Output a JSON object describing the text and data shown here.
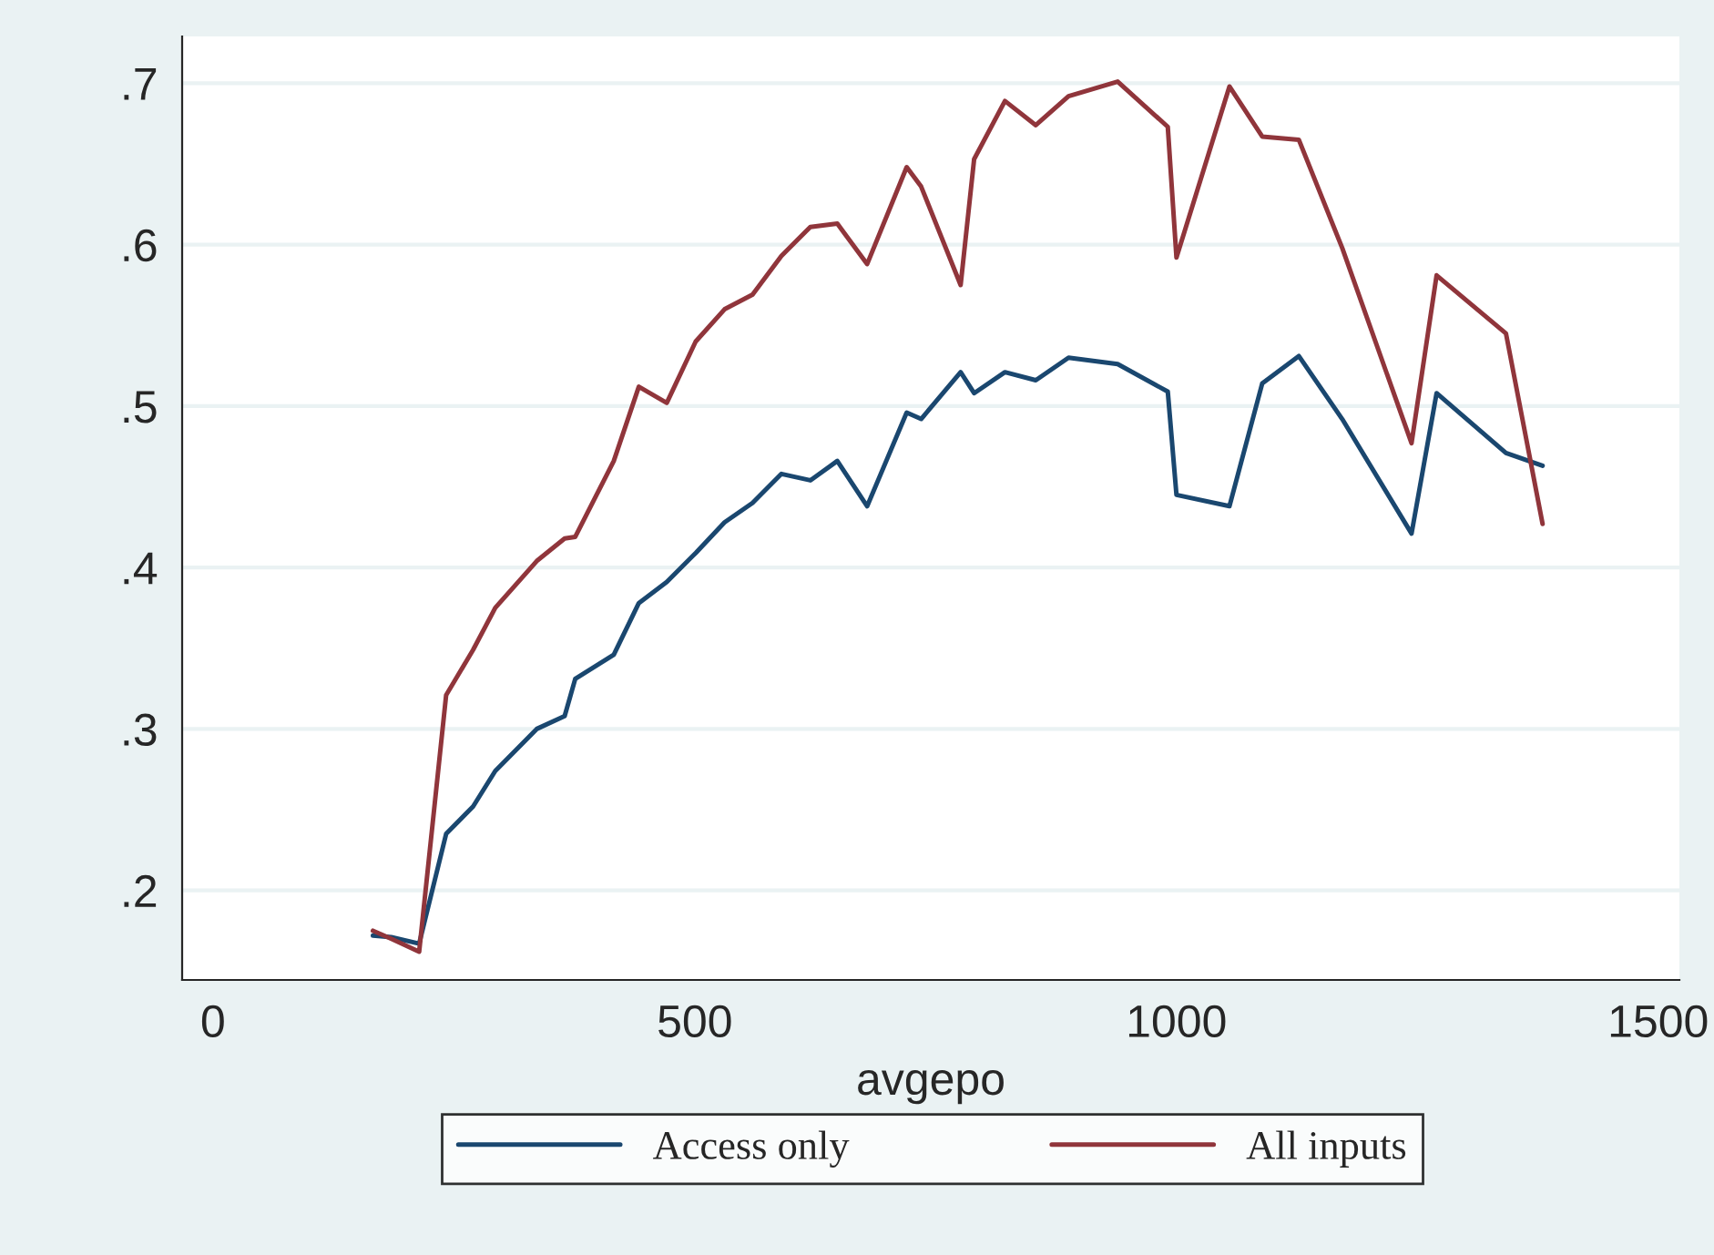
{
  "chart_data": {
    "type": "line",
    "xlabel": "avgepo",
    "x": [
      166,
      185,
      214,
      242,
      270,
      293,
      336,
      365,
      376,
      416,
      442,
      471,
      501,
      531,
      560,
      590,
      620,
      648,
      679,
      720,
      735,
      776,
      790,
      822,
      854,
      888,
      939,
      991,
      1000,
      1055,
      1089,
      1127,
      1172,
      1244,
      1270,
      1342,
      1380
    ],
    "series": [
      {
        "name": "Access only",
        "color": "#1a476f",
        "values": [
          0.172,
          0.171,
          0.167,
          0.235,
          0.252,
          0.274,
          0.3,
          0.308,
          0.331,
          0.346,
          0.378,
          0.391,
          0.409,
          0.428,
          0.44,
          0.458,
          0.454,
          0.466,
          0.438,
          0.496,
          0.492,
          0.521,
          0.508,
          0.521,
          0.516,
          0.53,
          0.526,
          0.509,
          0.445,
          0.438,
          0.514,
          0.531,
          0.492,
          0.421,
          0.508,
          0.471,
          0.463
        ]
      },
      {
        "name": "All inputs",
        "color": "#90353b",
        "values": [
          0.175,
          0.17,
          0.162,
          0.321,
          0.349,
          0.375,
          0.404,
          0.418,
          0.419,
          0.466,
          0.512,
          0.502,
          0.54,
          0.56,
          0.569,
          0.593,
          0.611,
          0.613,
          0.588,
          0.648,
          0.636,
          0.575,
          0.653,
          0.689,
          0.674,
          0.692,
          0.701,
          0.673,
          0.592,
          0.698,
          0.667,
          0.665,
          0.598,
          0.477,
          0.581,
          0.545,
          0.427
        ]
      }
    ],
    "xlim": [
      -32,
      1522
    ],
    "ylim": [
      0.1445,
      0.729
    ],
    "xticks": [
      0,
      500,
      1000,
      1500
    ],
    "yticks": [
      {
        "value": 0.2,
        "label": ".2"
      },
      {
        "value": 0.3,
        "label": ".3"
      },
      {
        "value": 0.4,
        "label": ".4"
      },
      {
        "value": 0.5,
        "label": ".5"
      },
      {
        "value": 0.6,
        "label": ".6"
      },
      {
        "value": 0.7,
        "label": ".7"
      }
    ],
    "grid": "y",
    "legend": "bottom",
    "marker": "none",
    "line_style": "solid"
  }
}
